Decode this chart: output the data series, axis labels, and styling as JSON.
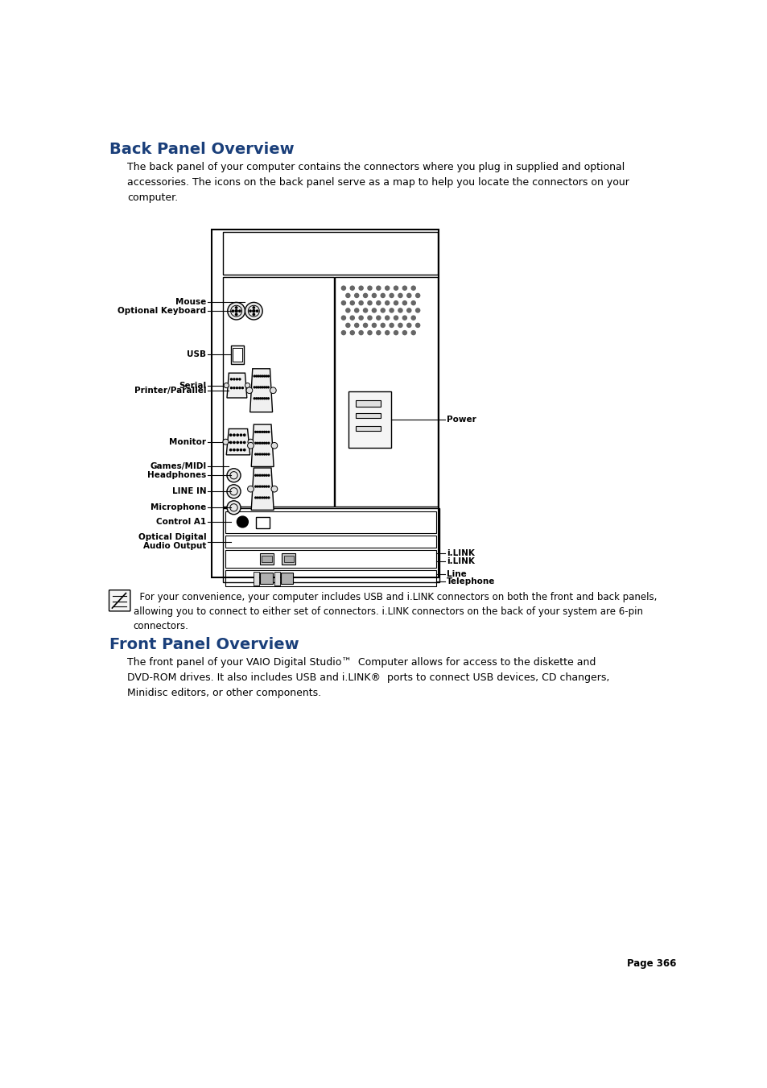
{
  "title1": "Back Panel Overview",
  "title2": "Front Panel Overview",
  "bg_color": "#ffffff",
  "title_color": "#1a3f7a",
  "body_color": "#000000",
  "page_text": "Page 366",
  "back_panel_intro": "The back panel of your computer contains the connectors where you plug in supplied and optional\naccessories. The icons on the back panel serve as a map to help you locate the connectors on your\ncomputer.",
  "note_text": "  For your convenience, your computer includes USB and i.LINK connectors on both the front and back panels,\nallowing you to connect to either set of connectors. i.LINK connectors on the back of your system are 6-pin\nconnectors.",
  "front_panel_intro": "The front panel of your VAIO Digital Studio™  Computer allows for access to the diskette and\nDVD-ROM drives. It also includes USB and i.LINK®  ports to connect USB devices, CD changers,\nMinidisc editors, or other components.",
  "diagram": {
    "ox": 185,
    "oy": 160,
    "ow": 365,
    "oh": 560
  }
}
